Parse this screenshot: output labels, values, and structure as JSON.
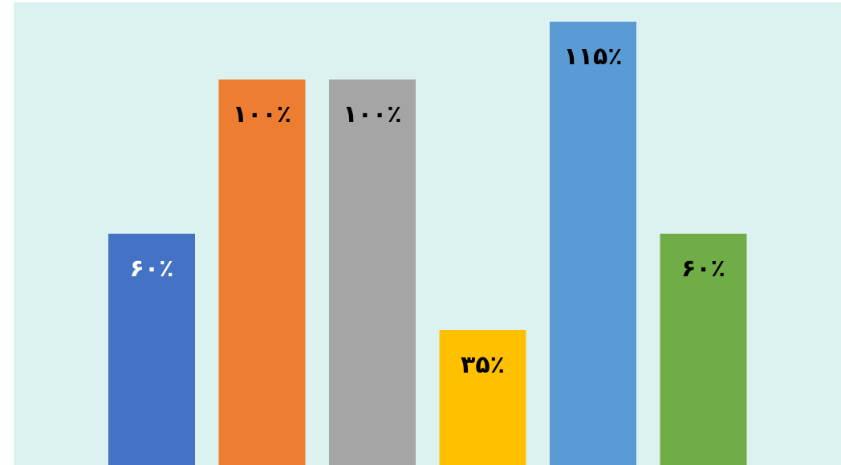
{
  "chart_data": {
    "type": "bar",
    "title": "",
    "xlabel": "",
    "ylabel": "",
    "ylim": [
      0,
      120
    ],
    "grid": false,
    "legend": "none",
    "background": "#dbf2f0",
    "values": [
      60,
      100,
      100,
      35,
      115,
      60
    ],
    "colors": [
      "#4472c4",
      "#ed7d31",
      "#a5a5a5",
      "#ffc000",
      "#5b9bd5",
      "#70ad47"
    ],
    "label_colors": [
      "#ffffff",
      "#000000",
      "#000000",
      "#000000",
      "#000000",
      "#000000"
    ],
    "labels": [
      "۶۰٪",
      "۱۰۰٪",
      "۱۰۰٪",
      "۳۵٪",
      "۱۱۵٪",
      "۶۰٪"
    ]
  }
}
